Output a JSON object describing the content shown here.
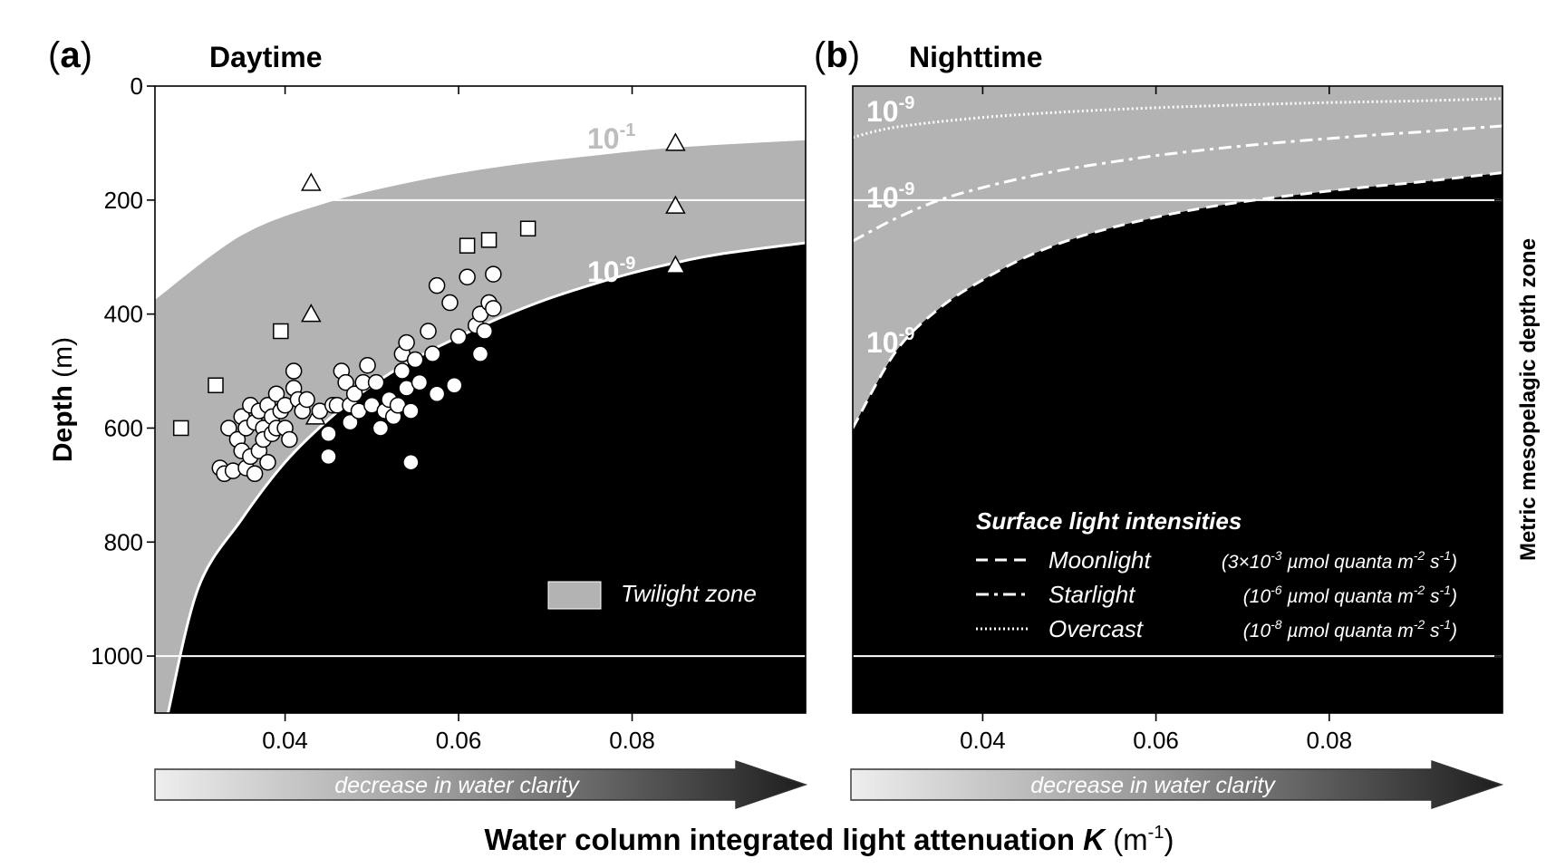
{
  "figure": {
    "xlabel_main": "Water column integrated light attenuation",
    "xlabel_symbol": "K",
    "xlabel_unit": "(m",
    "xlabel_unit_exp": "-1",
    "xlabel_unit_close": ")",
    "ylabel_main": "Depth",
    "ylabel_unit": "(m)",
    "right_label": "Metric mesopelagic depth zone",
    "arrow_text": "decrease in water clarity"
  },
  "colors": {
    "twilight": "#b3b3b3",
    "dark": "#000000",
    "marker_fill": "#ffffff",
    "marker_stroke": "#000000",
    "ref_line": "#ffffff",
    "iso_label": "#ffffff",
    "iso_label_light": "#bdbdbd"
  },
  "chart_data": [
    {
      "type": "scatter",
      "panel_letter": "a",
      "title": "Daytime",
      "xlim": [
        0.025,
        0.1
      ],
      "ylim": [
        1100,
        0
      ],
      "x_ticks": [
        0.04,
        0.06,
        0.08
      ],
      "x_tick_labels": [
        "0.04",
        "0.06",
        "0.08"
      ],
      "y_ticks": [
        0,
        200,
        400,
        600,
        800,
        1000
      ],
      "y_tick_labels": [
        "0",
        "200",
        "400",
        "600",
        "800",
        "1000"
      ],
      "reference_depths": [
        200,
        1000
      ],
      "isolumes": [
        {
          "label_base": "10",
          "label_exp": "-1",
          "K": [
            0.025,
            0.035,
            0.045,
            0.055,
            0.065,
            0.075,
            0.085,
            0.1
          ],
          "depth": [
            375,
            262,
            204,
            167,
            141,
            123,
            108,
            95
          ]
        },
        {
          "label_base": "10",
          "label_exp": "-9",
          "K": [
            0.0265,
            0.03,
            0.035,
            0.04,
            0.045,
            0.05,
            0.055,
            0.06,
            0.065,
            0.07,
            0.075,
            0.08,
            0.085,
            0.09,
            0.1
          ],
          "depth": [
            1100,
            880,
            760,
            660,
            585,
            525,
            478,
            440,
            405,
            375,
            350,
            328,
            310,
            295,
            275
          ]
        }
      ],
      "legend": {
        "label": "Twilight zone",
        "position": "bottom-right"
      },
      "series": [
        {
          "marker": "square",
          "points": [
            [
              0.028,
              600
            ],
            [
              0.032,
              525
            ],
            [
              0.0395,
              430
            ],
            [
              0.061,
              280
            ],
            [
              0.0635,
              270
            ],
            [
              0.068,
              250
            ]
          ]
        },
        {
          "marker": "triangle",
          "points": [
            [
              0.043,
              170
            ],
            [
              0.043,
              400
            ],
            [
              0.0435,
              580
            ],
            [
              0.085,
              100
            ],
            [
              0.085,
              210
            ],
            [
              0.085,
              315
            ]
          ]
        },
        {
          "marker": "circle",
          "points": [
            [
              0.0325,
              670
            ],
            [
              0.033,
              680
            ],
            [
              0.0335,
              600
            ],
            [
              0.034,
              675
            ],
            [
              0.0345,
              620
            ],
            [
              0.035,
              580
            ],
            [
              0.035,
              640
            ],
            [
              0.0355,
              600
            ],
            [
              0.0355,
              670
            ],
            [
              0.036,
              560
            ],
            [
              0.036,
              650
            ],
            [
              0.0365,
              590
            ],
            [
              0.0365,
              680
            ],
            [
              0.037,
              570
            ],
            [
              0.037,
              640
            ],
            [
              0.0375,
              600
            ],
            [
              0.0375,
              620
            ],
            [
              0.038,
              560
            ],
            [
              0.038,
              660
            ],
            [
              0.0385,
              580
            ],
            [
              0.0385,
              610
            ],
            [
              0.039,
              540
            ],
            [
              0.039,
              600
            ],
            [
              0.0395,
              570
            ],
            [
              0.04,
              560
            ],
            [
              0.04,
              600
            ],
            [
              0.0405,
              620
            ],
            [
              0.041,
              500
            ],
            [
              0.041,
              530
            ],
            [
              0.0415,
              550
            ],
            [
              0.042,
              570
            ],
            [
              0.0425,
              550
            ],
            [
              0.044,
              570
            ],
            [
              0.045,
              610
            ],
            [
              0.045,
              650
            ],
            [
              0.0455,
              560
            ],
            [
              0.046,
              560
            ],
            [
              0.0465,
              500
            ],
            [
              0.047,
              520
            ],
            [
              0.0475,
              560
            ],
            [
              0.0475,
              590
            ],
            [
              0.048,
              540
            ],
            [
              0.0485,
              570
            ],
            [
              0.049,
              520
            ],
            [
              0.0495,
              490
            ],
            [
              0.05,
              560
            ],
            [
              0.0505,
              520
            ],
            [
              0.051,
              600
            ],
            [
              0.0515,
              570
            ],
            [
              0.052,
              550
            ],
            [
              0.0525,
              580
            ],
            [
              0.053,
              560
            ],
            [
              0.0535,
              470
            ],
            [
              0.0535,
              500
            ],
            [
              0.054,
              450
            ],
            [
              0.054,
              530
            ],
            [
              0.0545,
              570
            ],
            [
              0.0545,
              660
            ],
            [
              0.055,
              480
            ],
            [
              0.0555,
              520
            ],
            [
              0.0565,
              430
            ],
            [
              0.057,
              470
            ],
            [
              0.0575,
              350
            ],
            [
              0.0575,
              540
            ],
            [
              0.059,
              380
            ],
            [
              0.0595,
              525
            ],
            [
              0.06,
              440
            ],
            [
              0.061,
              335
            ],
            [
              0.062,
              420
            ],
            [
              0.0625,
              400
            ],
            [
              0.0625,
              470
            ],
            [
              0.063,
              430
            ],
            [
              0.0635,
              380
            ],
            [
              0.064,
              330
            ],
            [
              0.064,
              390
            ]
          ]
        }
      ]
    },
    {
      "type": "line",
      "panel_letter": "b",
      "title": "Nighttime",
      "xlim": [
        0.025,
        0.1
      ],
      "ylim": [
        1100,
        0
      ],
      "x_ticks": [
        0.04,
        0.06,
        0.08
      ],
      "x_tick_labels": [
        "0.04",
        "0.06",
        "0.08"
      ],
      "reference_depths": [
        200,
        1000
      ],
      "legend": {
        "title": "Surface light intensities",
        "position": "bottom-right",
        "entries": [
          {
            "name": "Moonlight",
            "style": "dashed",
            "pre": "(3×10",
            "exp1": "-3",
            "mid": " µmol quanta m",
            "exp2": "-2",
            "mid2": " s",
            "exp3": "-1",
            "post": ")"
          },
          {
            "name": "Starlight",
            "style": "dashdot",
            "pre": "(10",
            "exp1": "-6",
            "mid": " µmol quanta m",
            "exp2": "-2",
            "mid2": " s",
            "exp3": "-1",
            "post": ")"
          },
          {
            "name": "Overcast",
            "style": "dotted",
            "pre": "(10",
            "exp1": "-8",
            "mid": " µmol quanta m",
            "exp2": "-2",
            "mid2": " s",
            "exp3": "-1",
            "post": ")"
          }
        ]
      },
      "series": [
        {
          "name": "Moonlight",
          "style": "dashed",
          "label_base": "10",
          "label_exp": "-9",
          "K": [
            0.025,
            0.03,
            0.035,
            0.04,
            0.045,
            0.05,
            0.055,
            0.06,
            0.065,
            0.07,
            0.075,
            0.08,
            0.085,
            0.09,
            0.1
          ],
          "depth": [
            600,
            465,
            390,
            340,
            300,
            270,
            248,
            230,
            215,
            203,
            193,
            184,
            176,
            169,
            152
          ]
        },
        {
          "name": "Starlight",
          "style": "dashdot",
          "label_base": "10",
          "label_exp": "-9",
          "K": [
            0.025,
            0.03,
            0.035,
            0.04,
            0.045,
            0.05,
            0.055,
            0.06,
            0.065,
            0.07,
            0.075,
            0.08,
            0.085,
            0.09,
            0.1
          ],
          "depth": [
            272,
            232,
            200,
            178,
            160,
            145,
            133,
            122,
            113,
            105,
            98,
            92,
            86,
            81,
            70
          ]
        },
        {
          "name": "Overcast",
          "style": "dotted",
          "label_base": "10",
          "label_exp": "-9",
          "K": [
            0.025,
            0.03,
            0.04,
            0.05,
            0.06,
            0.07,
            0.08,
            0.09,
            0.1
          ],
          "depth": [
            90,
            72,
            55,
            45,
            38,
            33,
            29,
            26,
            22
          ]
        }
      ]
    }
  ]
}
